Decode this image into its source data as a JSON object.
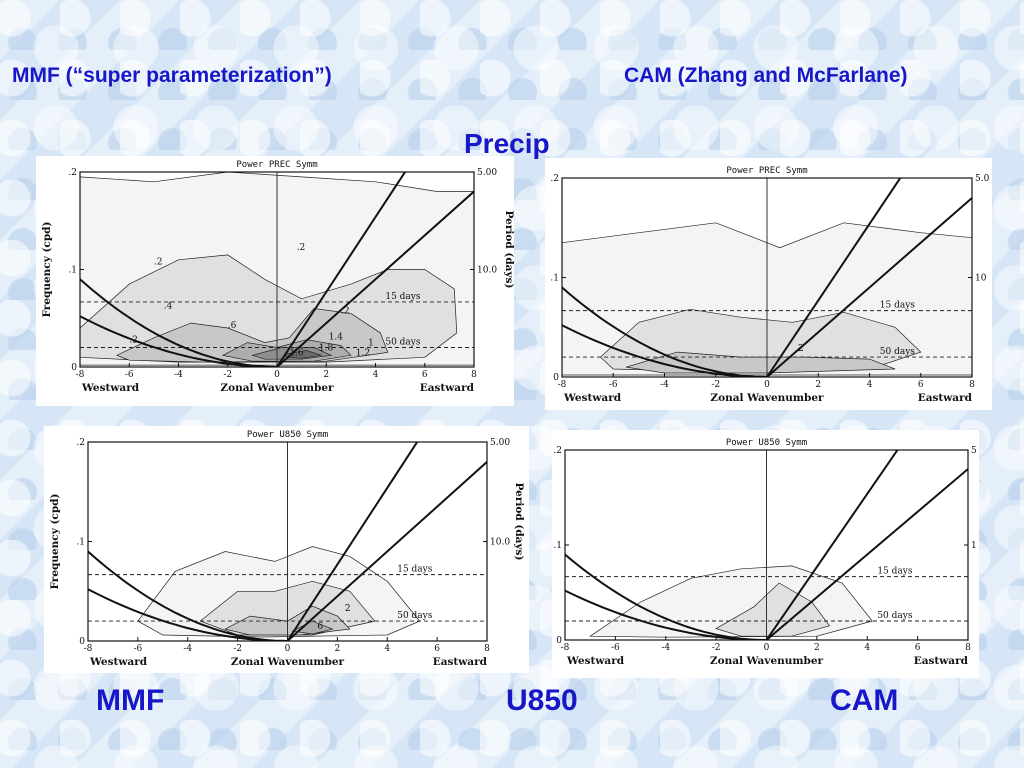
{
  "slide": {
    "heading_left": "MMF (“super parameterization”)",
    "heading_right": "CAM (Zhang and McFarlane)",
    "heading_center": "Precip",
    "bottom_left": "MMF",
    "bottom_center": "U850",
    "bottom_right": "CAM",
    "text_color": "#1717c8"
  },
  "chart_data": [
    {
      "id": "mmf-precip",
      "type": "heatmap",
      "title": "Power PREC Symm",
      "xlabel": "Zonal Wavenumber",
      "xlabel_left": "Westward",
      "xlabel_right": "Eastward",
      "ylabel": "Frequency (cpd)",
      "ylabel_right": "Period (days)",
      "xlim": [
        -8,
        8
      ],
      "ylim": [
        0,
        0.2
      ],
      "x_ticks": [
        "-8",
        "-6",
        "-4",
        "-2",
        "0",
        "2",
        "4",
        "6",
        "8"
      ],
      "y_ticks": [
        ".2",
        ".1",
        "0"
      ],
      "y_right_ticks": [
        "5.00",
        "10.0"
      ],
      "period_lines": [
        {
          "label": "15 days",
          "freq": 0.0667
        },
        {
          "label": "50 days",
          "freq": 0.02
        }
      ],
      "contour_labels": [
        ".2",
        ".2",
        ".2",
        ".4",
        ".6",
        ".2",
        "1",
        "1.2",
        "1.4",
        "1.6",
        "1.8"
      ],
      "contour_fills": [
        {
          "level": 1,
          "points": [
            [
              -8,
              0.195
            ],
            [
              -5,
              0.19
            ],
            [
              -2,
              0.2
            ],
            [
              1,
              0.195
            ],
            [
              4,
              0.19
            ],
            [
              6.5,
              0.18
            ],
            [
              8,
              0.18
            ],
            [
              8,
              0.002
            ],
            [
              -8,
              0.002
            ]
          ]
        },
        {
          "level": 2,
          "points": [
            [
              -8,
              0.04
            ],
            [
              -6,
              0.085
            ],
            [
              -4,
              0.11
            ],
            [
              -2,
              0.115
            ],
            [
              -0.5,
              0.09
            ],
            [
              1,
              0.07
            ],
            [
              3,
              0.085
            ],
            [
              4.5,
              0.1
            ],
            [
              6,
              0.1
            ],
            [
              7.2,
              0.08
            ],
            [
              7.3,
              0.035
            ],
            [
              6,
              0.01
            ],
            [
              2,
              0.005
            ],
            [
              -4,
              0.005
            ],
            [
              -8,
              0.01
            ]
          ]
        },
        {
          "level": 3,
          "points": [
            [
              -6.5,
              0.012
            ],
            [
              -5,
              0.03
            ],
            [
              -3.5,
              0.045
            ],
            [
              -2,
              0.04
            ],
            [
              -0.5,
              0.025
            ],
            [
              0.5,
              0.03
            ],
            [
              1.5,
              0.06
            ],
            [
              3,
              0.055
            ],
            [
              4.2,
              0.035
            ],
            [
              4.5,
              0.015
            ],
            [
              2,
              0.006
            ],
            [
              -3,
              0.005
            ],
            [
              -6,
              0.007
            ]
          ]
        },
        {
          "level": 4,
          "points": [
            [
              -2.2,
              0.012
            ],
            [
              -1.2,
              0.025
            ],
            [
              0,
              0.02
            ],
            [
              1.2,
              0.028
            ],
            [
              2.6,
              0.022
            ],
            [
              3,
              0.012
            ],
            [
              1.5,
              0.006
            ],
            [
              -1,
              0.006
            ]
          ]
        },
        {
          "level": 5,
          "points": [
            [
              -1,
              0.012
            ],
            [
              0.2,
              0.02
            ],
            [
              1.5,
              0.02
            ],
            [
              2.2,
              0.012
            ],
            [
              1,
              0.008
            ],
            [
              -0.5,
              0.008
            ]
          ]
        },
        {
          "level": 6,
          "points": [
            [
              0.3,
              0.013
            ],
            [
              1.2,
              0.017
            ],
            [
              1.8,
              0.012
            ],
            [
              1,
              0.009
            ],
            [
              0.4,
              0.01
            ]
          ]
        }
      ]
    },
    {
      "id": "cam-precip",
      "type": "heatmap",
      "title": "Power PREC Symm",
      "xlabel": "Zonal Wavenumber",
      "xlabel_left": "Westward",
      "xlabel_right": "Eastward",
      "ylabel": "",
      "ylabel_right": "",
      "xlim": [
        -8,
        8
      ],
      "ylim": [
        0,
        0.2
      ],
      "x_ticks": [
        "-8",
        "-6",
        "-4",
        "-2",
        "0",
        "2",
        "4",
        "6",
        "8"
      ],
      "y_ticks": [
        ".2",
        ".1",
        "0"
      ],
      "y_right_ticks": [
        "5.0",
        "10"
      ],
      "period_lines": [
        {
          "label": "15 days",
          "freq": 0.0667
        },
        {
          "label": "50 days",
          "freq": 0.02
        }
      ],
      "contour_labels": [
        ".2"
      ],
      "contour_fills": [
        {
          "level": 1,
          "points": [
            [
              -8,
              0.135
            ],
            [
              -5,
              0.145
            ],
            [
              -2,
              0.155
            ],
            [
              0.5,
              0.13
            ],
            [
              3,
              0.155
            ],
            [
              6,
              0.145
            ],
            [
              8,
              0.14
            ],
            [
              8,
              0.002
            ],
            [
              -8,
              0.002
            ]
          ]
        },
        {
          "level": 2,
          "points": [
            [
              -6.5,
              0.02
            ],
            [
              -5,
              0.055
            ],
            [
              -3,
              0.068
            ],
            [
              -1,
              0.06
            ],
            [
              1,
              0.055
            ],
            [
              3,
              0.065
            ],
            [
              5,
              0.05
            ],
            [
              6,
              0.025
            ],
            [
              4,
              0.008
            ],
            [
              -3,
              0.006
            ],
            [
              -6,
              0.008
            ]
          ]
        },
        {
          "level": 3,
          "points": [
            [
              -5.5,
              0.01
            ],
            [
              -3.5,
              0.025
            ],
            [
              -1,
              0.02
            ],
            [
              1.5,
              0.02
            ],
            [
              4,
              0.018
            ],
            [
              5,
              0.008
            ],
            [
              0,
              0.004
            ],
            [
              -4,
              0.004
            ]
          ]
        }
      ]
    },
    {
      "id": "mmf-u850",
      "type": "heatmap",
      "title": "Power U850 Symm",
      "xlabel": "Zonal Wavenumber",
      "xlabel_left": "Westward",
      "xlabel_right": "Eastward",
      "ylabel": "Frequency (cpd)",
      "ylabel_right": "Period (days)",
      "xlim": [
        -8,
        8
      ],
      "ylim": [
        0,
        0.2
      ],
      "x_ticks": [
        "-8",
        "-6",
        "-4",
        "-2",
        "0",
        "2",
        "4",
        "6",
        "8"
      ],
      "y_ticks": [
        ".2",
        ".1",
        "0"
      ],
      "y_right_ticks": [
        "5.00",
        "10.0"
      ],
      "period_lines": [
        {
          "label": "15 days",
          "freq": 0.0667
        },
        {
          "label": "50 days",
          "freq": 0.02
        }
      ],
      "contour_labels": [
        "2",
        "6"
      ],
      "contour_fills": [
        {
          "level": 1,
          "points": [
            [
              -6,
              0.02
            ],
            [
              -4.5,
              0.07
            ],
            [
              -2.5,
              0.09
            ],
            [
              -0.5,
              0.08
            ],
            [
              1,
              0.095
            ],
            [
              2.5,
              0.085
            ],
            [
              4,
              0.06
            ],
            [
              5.3,
              0.02
            ],
            [
              4,
              0.006
            ],
            [
              -1,
              0.004
            ],
            [
              -5,
              0.006
            ]
          ]
        },
        {
          "level": 2,
          "points": [
            [
              -3.5,
              0.02
            ],
            [
              -2,
              0.05
            ],
            [
              -0.5,
              0.05
            ],
            [
              1,
              0.06
            ],
            [
              2.5,
              0.05
            ],
            [
              3.5,
              0.02
            ],
            [
              1,
              0.006
            ],
            [
              -2,
              0.006
            ]
          ]
        },
        {
          "level": 3,
          "points": [
            [
              -2.5,
              0.012
            ],
            [
              -1.5,
              0.025
            ],
            [
              0,
              0.02
            ],
            [
              1,
              0.035
            ],
            [
              2,
              0.025
            ],
            [
              2.5,
              0.012
            ],
            [
              0.5,
              0.006
            ],
            [
              -1.5,
              0.006
            ]
          ]
        },
        {
          "level": 4,
          "points": [
            [
              0.2,
              0.01
            ],
            [
              1,
              0.02
            ],
            [
              1.8,
              0.012
            ],
            [
              1,
              0.007
            ]
          ]
        }
      ]
    },
    {
      "id": "cam-u850",
      "type": "heatmap",
      "title": "Power U850 Symm",
      "xlabel": "Zonal Wavenumber",
      "xlabel_left": "Westward",
      "xlabel_right": "Eastward",
      "ylabel": "",
      "ylabel_right": "",
      "xlim": [
        -8,
        8
      ],
      "ylim": [
        0,
        0.2
      ],
      "x_ticks": [
        "-8",
        "-6",
        "-4",
        "-2",
        "0",
        "2",
        "4",
        "6",
        "8"
      ],
      "y_ticks": [
        ".2",
        ".1",
        "0"
      ],
      "y_right_ticks": [
        "5",
        "1"
      ],
      "period_lines": [
        {
          "label": "15 days",
          "freq": 0.0667
        },
        {
          "label": "50 days",
          "freq": 0.02
        }
      ],
      "contour_labels": [],
      "contour_fills": [
        {
          "level": 1,
          "points": [
            [
              -7,
              0.004
            ],
            [
              -5,
              0.04
            ],
            [
              -3,
              0.065
            ],
            [
              -1,
              0.075
            ],
            [
              1,
              0.078
            ],
            [
              3,
              0.06
            ],
            [
              4.2,
              0.02
            ],
            [
              2,
              0.004
            ],
            [
              -4,
              0.003
            ]
          ]
        },
        {
          "level": 2,
          "points": [
            [
              -2,
              0.012
            ],
            [
              -0.5,
              0.035
            ],
            [
              0.5,
              0.06
            ],
            [
              1.8,
              0.04
            ],
            [
              2.5,
              0.015
            ],
            [
              1,
              0.004
            ],
            [
              -1,
              0.004
            ]
          ]
        }
      ]
    }
  ]
}
